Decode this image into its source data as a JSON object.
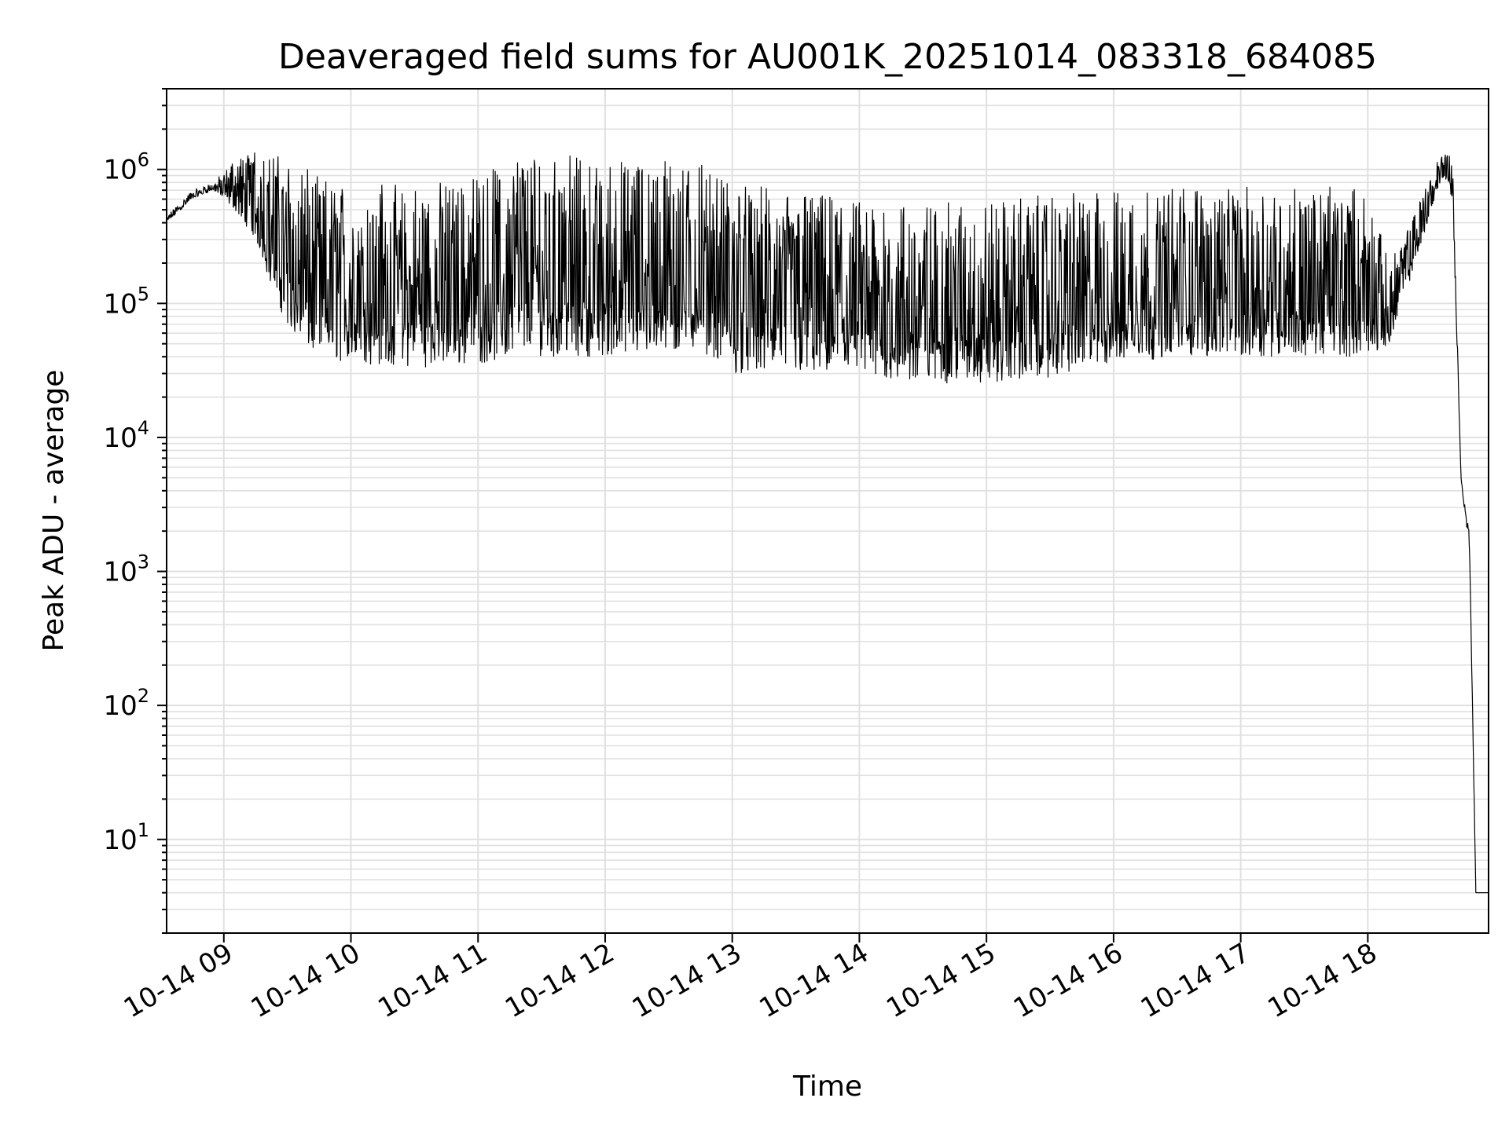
{
  "chart_data": {
    "type": "line",
    "title": "Deaveraged field sums for AU001K_20251014_083318_684085",
    "xlabel": "Time",
    "ylabel": "Peak ADU - average",
    "yscale": "log",
    "ylim": [
      2,
      4000000
    ],
    "xlim": [
      "2025-10-14 08:33",
      "2025-10-14 18:57"
    ],
    "grid": true,
    "grid_color": "#e0e0e0",
    "line_color": "#000000",
    "x_ticks": [
      {
        "value": "2025-10-14 09:00",
        "label": "10-14 09"
      },
      {
        "value": "2025-10-14 10:00",
        "label": "10-14 10"
      },
      {
        "value": "2025-10-14 11:00",
        "label": "10-14 11"
      },
      {
        "value": "2025-10-14 12:00",
        "label": "10-14 12"
      },
      {
        "value": "2025-10-14 13:00",
        "label": "10-14 13"
      },
      {
        "value": "2025-10-14 14:00",
        "label": "10-14 14"
      },
      {
        "value": "2025-10-14 15:00",
        "label": "10-14 15"
      },
      {
        "value": "2025-10-14 16:00",
        "label": "10-14 16"
      },
      {
        "value": "2025-10-14 17:00",
        "label": "10-14 17"
      },
      {
        "value": "2025-10-14 18:00",
        "label": "10-14 18"
      }
    ],
    "y_ticks": [
      {
        "value": 10,
        "base": "10",
        "exp": "1"
      },
      {
        "value": 100,
        "base": "10",
        "exp": "2"
      },
      {
        "value": 1000,
        "base": "10",
        "exp": "3"
      },
      {
        "value": 10000,
        "base": "10",
        "exp": "4"
      },
      {
        "value": 100000,
        "base": "10",
        "exp": "5"
      },
      {
        "value": 1000000,
        "base": "10",
        "exp": "6"
      }
    ],
    "series": [
      {
        "name": "",
        "envelope": {
          "note_x": "time",
          "x": [
            "2025-10-14 08:33",
            "2025-10-14 08:45",
            "2025-10-14 08:55",
            "2025-10-14 09:05",
            "2025-10-14 09:15",
            "2025-10-14 09:25",
            "2025-10-14 09:35",
            "2025-10-14 09:45",
            "2025-10-14 10:00",
            "2025-10-14 10:30",
            "2025-10-14 11:00",
            "2025-10-14 11:20",
            "2025-10-14 11:40",
            "2025-10-14 12:00",
            "2025-10-14 12:30",
            "2025-10-14 12:45",
            "2025-10-14 13:00",
            "2025-10-14 13:30",
            "2025-10-14 14:00",
            "2025-10-14 14:30",
            "2025-10-14 15:00",
            "2025-10-14 15:30",
            "2025-10-14 16:00",
            "2025-10-14 16:30",
            "2025-10-14 17:00",
            "2025-10-14 17:30",
            "2025-10-14 18:00",
            "2025-10-14 18:10",
            "2025-10-14 18:20",
            "2025-10-14 18:30",
            "2025-10-14 18:36",
            "2025-10-14 18:40",
            "2025-10-14 18:44",
            "2025-10-14 18:46",
            "2025-10-14 18:48",
            "2025-10-14 18:51",
            "2025-10-14 18:54",
            "2025-10-14 18:57"
          ],
          "lower": [
            400000,
            600000,
            700000,
            500000,
            300000,
            100000,
            50000,
            40000,
            35000,
            33000,
            35000,
            40000,
            40000,
            40000,
            42000,
            45000,
            30000,
            30000,
            28000,
            25000,
            25000,
            28000,
            35000,
            40000,
            40000,
            40000,
            40000,
            50000,
            150000,
            500000,
            900000,
            600000,
            5000,
            2500,
            1500,
            4,
            4,
            4
          ],
          "upper": [
            450000,
            700000,
            800000,
            1200000,
            1500000,
            1300000,
            1100000,
            900000,
            800000,
            800000,
            900000,
            1300000,
            1300000,
            1200000,
            1200000,
            1100000,
            800000,
            700000,
            600000,
            550000,
            600000,
            650000,
            700000,
            750000,
            750000,
            750000,
            750000,
            200000,
            400000,
            1000000,
            1400000,
            1300000,
            5000,
            3000,
            2000,
            4,
            4,
            4
          ]
        }
      }
    ]
  }
}
